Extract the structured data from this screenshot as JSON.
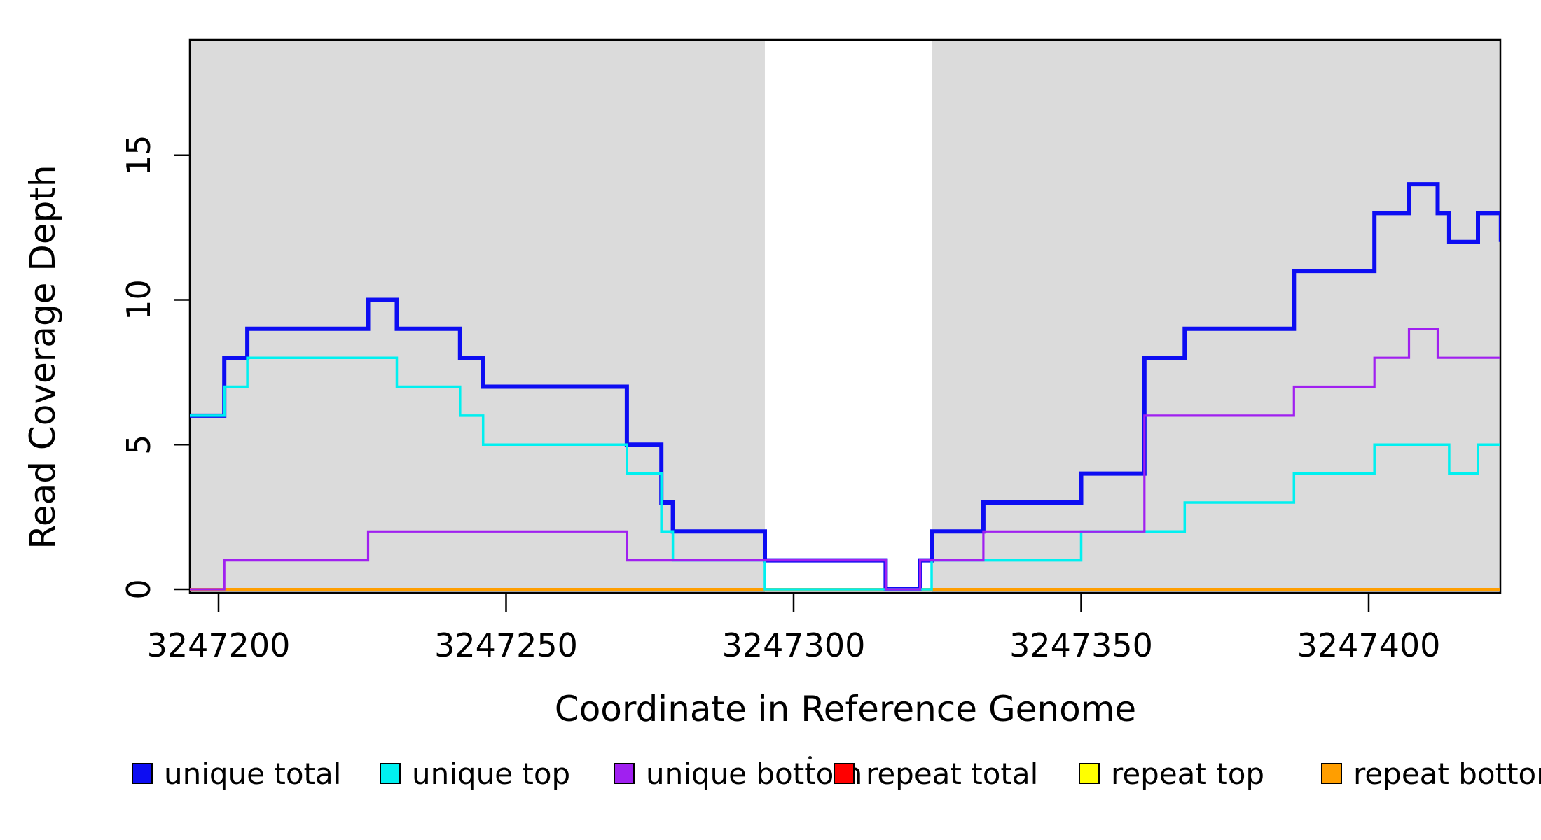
{
  "chart_data": {
    "type": "line",
    "subtype": "step-coverage",
    "title": "",
    "xlabel": "Coordinate in Reference Genome",
    "ylabel": "Read Coverage Depth",
    "xlim": [
      3247195,
      3247423
    ],
    "ylim": [
      0,
      19
    ],
    "x_ticks": [
      3247200,
      3247250,
      3247300,
      3247350,
      3247400
    ],
    "y_ticks": [
      0,
      5,
      10,
      15
    ],
    "grid": false,
    "plot_background": "#ffffff",
    "band_color": "#dbdbdb",
    "grey_bands": [
      [
        3247195,
        3247295
      ],
      [
        3247324,
        3247423
      ]
    ],
    "legend_position": "bottom",
    "draw_order": [
      "repeat total",
      "repeat top",
      "repeat bottom",
      "unique total",
      "unique top",
      "unique bottom"
    ],
    "series": [
      {
        "name": "unique total",
        "color": "#0d0df2",
        "line_width": 6,
        "steps": [
          [
            3247195,
            6
          ],
          [
            3247201,
            8
          ],
          [
            3247205,
            9
          ],
          [
            3247226,
            10
          ],
          [
            3247231,
            9
          ],
          [
            3247242,
            8
          ],
          [
            3247246,
            7
          ],
          [
            3247271,
            5
          ],
          [
            3247277,
            3
          ],
          [
            3247279,
            2
          ],
          [
            3247295,
            1
          ],
          [
            3247316,
            0
          ],
          [
            3247322,
            1
          ],
          [
            3247324,
            2
          ],
          [
            3247333,
            3
          ],
          [
            3247350,
            4
          ],
          [
            3247361,
            8
          ],
          [
            3247368,
            9
          ],
          [
            3247387,
            11
          ],
          [
            3247401,
            13
          ],
          [
            3247407,
            14
          ],
          [
            3247412,
            13
          ],
          [
            3247414,
            12
          ],
          [
            3247419,
            13
          ],
          [
            3247423,
            12
          ]
        ]
      },
      {
        "name": "unique top",
        "color": "#00f0f0",
        "line_width": 3.5,
        "steps": [
          [
            3247195,
            6
          ],
          [
            3247201,
            7
          ],
          [
            3247205,
            8
          ],
          [
            3247231,
            7
          ],
          [
            3247242,
            6
          ],
          [
            3247246,
            5
          ],
          [
            3247271,
            4
          ],
          [
            3247277,
            2
          ],
          [
            3247279,
            1
          ],
          [
            3247295,
            0
          ],
          [
            3247324,
            1
          ],
          [
            3247350,
            2
          ],
          [
            3247368,
            3
          ],
          [
            3247387,
            4
          ],
          [
            3247401,
            5
          ],
          [
            3247414,
            4
          ],
          [
            3247419,
            5
          ],
          [
            3247423,
            5
          ]
        ]
      },
      {
        "name": "unique bottom",
        "color": "#a020f0",
        "line_width": 3.2,
        "steps": [
          [
            3247195,
            0
          ],
          [
            3247201,
            1
          ],
          [
            3247226,
            2
          ],
          [
            3247271,
            1
          ],
          [
            3247316,
            0
          ],
          [
            3247322,
            1
          ],
          [
            3247333,
            2
          ],
          [
            3247361,
            6
          ],
          [
            3247387,
            7
          ],
          [
            3247401,
            8
          ],
          [
            3247407,
            9
          ],
          [
            3247412,
            8
          ],
          [
            3247423,
            7
          ]
        ]
      },
      {
        "name": "repeat total",
        "color": "#ff0000",
        "line_width": 3,
        "steps": [
          [
            3247195,
            0
          ],
          [
            3247423,
            0
          ]
        ]
      },
      {
        "name": "repeat top",
        "color": "#ffff00",
        "line_width": 3,
        "steps": [
          [
            3247195,
            0
          ],
          [
            3247423,
            0
          ]
        ]
      },
      {
        "name": "repeat bottom",
        "color": "#ff9e00",
        "line_width": 4,
        "steps": [
          [
            3247195,
            0
          ],
          [
            3247423,
            0
          ]
        ]
      }
    ],
    "legend": {
      "entries": [
        {
          "label": "unique total",
          "color": "#0d0df2"
        },
        {
          "label": "unique top",
          "color": "#00f0f0"
        },
        {
          "label": "unique bottom",
          "color": "#a020f0"
        },
        {
          "label": "repeat total",
          "color": "#ff0000"
        },
        {
          "label": "repeat top",
          "color": "#ffff00"
        },
        {
          "label": "repeat bottom",
          "color": "#ff9e00"
        }
      ]
    }
  }
}
